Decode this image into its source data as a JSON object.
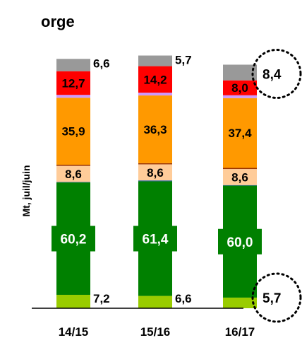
{
  "chart_data": {
    "type": "bar",
    "stacked": true,
    "title": "orge",
    "ylabel": "Mt, juil/juin",
    "categories": [
      "14/15",
      "15/16",
      "16/17"
    ],
    "segment_order_bottom_to_top": [
      "s1",
      "s2",
      "s3",
      "s4",
      "s5",
      "s6",
      "s7",
      "s8"
    ],
    "series": [
      {
        "key": "s1",
        "color": "#99cc00",
        "values": [
          7.2,
          6.6,
          5.7
        ],
        "labels": [
          "7,2",
          "6,6",
          "5,7"
        ],
        "label_style": "outside-right"
      },
      {
        "key": "s2",
        "color": "#008000",
        "values": [
          60.2,
          61.4,
          60.0
        ],
        "labels": [
          "60,2",
          "61,4",
          "60,0"
        ],
        "label_style": "badge"
      },
      {
        "key": "s3",
        "color": "#336699",
        "values": [
          0.3,
          0.5,
          0.3
        ],
        "labels": [
          "",
          "",
          ""
        ]
      },
      {
        "key": "s4",
        "color": "#ffcc99",
        "values": [
          8.6,
          8.6,
          8.6
        ],
        "labels": [
          "8,6",
          "8,6",
          "8,6"
        ],
        "label_style": "inside"
      },
      {
        "key": "s5",
        "color": "#993300",
        "values": [
          0.6,
          0.6,
          0.6
        ],
        "labels": [
          "",
          "",
          ""
        ]
      },
      {
        "key": "s6",
        "color": "#ff9900",
        "values": [
          35.9,
          36.3,
          37.4
        ],
        "labels": [
          "35,9",
          "36,3",
          "37,4"
        ],
        "label_style": "inside"
      },
      {
        "key": "s7",
        "color": "#cc99ff",
        "values": [
          1.5,
          1.5,
          1.5
        ],
        "labels": [
          "",
          "",
          ""
        ]
      },
      {
        "key": "s8",
        "color": "#ff0000",
        "values": [
          12.7,
          14.2,
          8.0
        ],
        "labels": [
          "12,7",
          "14,2",
          "8,0"
        ],
        "label_style": "inside"
      },
      {
        "key": "s9",
        "color": "#999999",
        "values": [
          6.6,
          5.7,
          8.4
        ],
        "labels": [
          "6,6",
          "5,7",
          "8,4"
        ],
        "label_style": "outside-right"
      }
    ],
    "highlighted_labels": [
      "8,4",
      "5,7"
    ],
    "grid": false,
    "legend": "none"
  }
}
